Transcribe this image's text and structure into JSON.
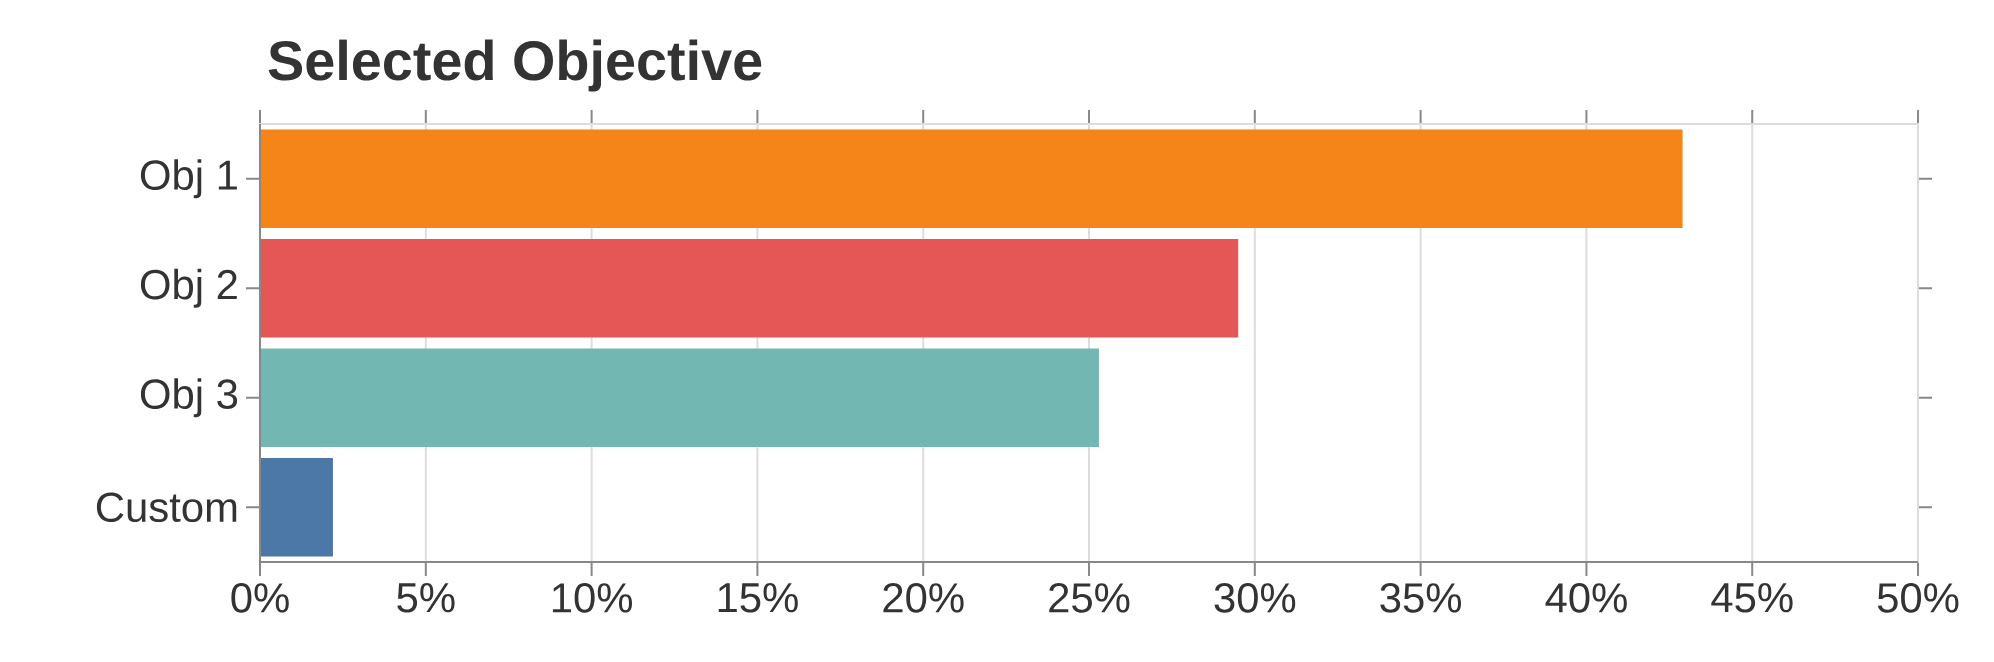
{
  "chart_data": {
    "type": "bar",
    "orientation": "horizontal",
    "title": "Selected Objective",
    "categories": [
      "Obj 1",
      "Obj 2",
      "Obj 3",
      "Custom"
    ],
    "values": [
      42.9,
      29.5,
      25.3,
      2.2
    ],
    "colors": [
      "#f58518",
      "#e45756",
      "#72b7b2",
      "#4c78a8"
    ],
    "xlim": [
      0,
      50
    ],
    "xticks": [
      {
        "value": 0,
        "label": "0%"
      },
      {
        "value": 5,
        "label": "5%"
      },
      {
        "value": 10,
        "label": "10%"
      },
      {
        "value": 15,
        "label": "15%"
      },
      {
        "value": 20,
        "label": "20%"
      },
      {
        "value": 25,
        "label": "25%"
      },
      {
        "value": 30,
        "label": "30%"
      },
      {
        "value": 35,
        "label": "35%"
      },
      {
        "value": 40,
        "label": "40%"
      },
      {
        "value": 45,
        "label": "45%"
      },
      {
        "value": 50,
        "label": "50%"
      }
    ],
    "grid": "x"
  }
}
